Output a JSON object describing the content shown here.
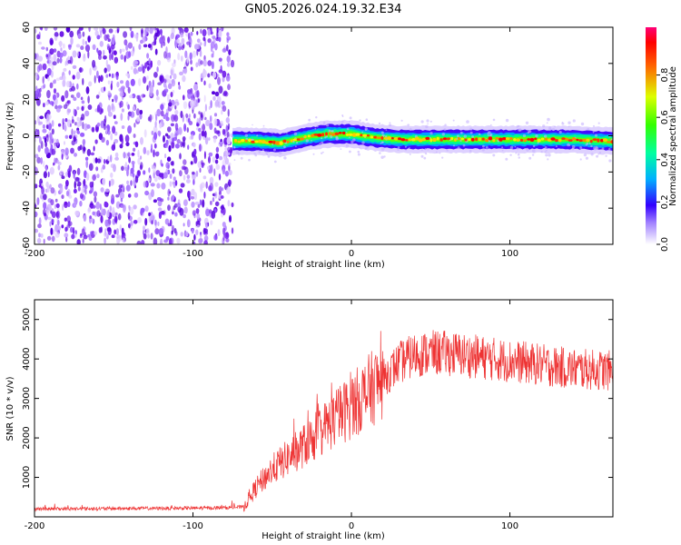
{
  "figure_title": "GN05.2026.024.19.32.E34",
  "chart_data": [
    {
      "type": "heatmap",
      "title": "GN05.2026.024.19.32.E34",
      "xlabel": "Height of straight line (km)",
      "ylabel": "Frequency (Hz)",
      "xlim": [
        -200,
        165
      ],
      "ylim": [
        -60,
        60
      ],
      "xticks": [
        -200,
        -100,
        0,
        100
      ],
      "yticks": [
        -60,
        -40,
        -20,
        0,
        20,
        40,
        60
      ],
      "noise_region_x": [
        -200,
        -75
      ],
      "signal_region_x": [
        -75,
        165
      ],
      "signal_center_freq": [
        {
          "x": -75,
          "y": -3
        },
        {
          "x": -60,
          "y": -3
        },
        {
          "x": -45,
          "y": -4
        },
        {
          "x": -30,
          "y": -1
        },
        {
          "x": -15,
          "y": 1
        },
        {
          "x": 0,
          "y": 1
        },
        {
          "x": 15,
          "y": -1
        },
        {
          "x": 30,
          "y": -2
        },
        {
          "x": 60,
          "y": -2
        },
        {
          "x": 90,
          "y": -2
        },
        {
          "x": 120,
          "y": -2
        },
        {
          "x": 140,
          "y": -2
        },
        {
          "x": 165,
          "y": -3
        }
      ],
      "colorbar": {
        "label": "Normalized spectral amplitude",
        "range": [
          0,
          1
        ],
        "ticks": [
          "0.0",
          "0.2",
          "0.4",
          "0.6",
          "0.8"
        ]
      }
    },
    {
      "type": "line",
      "xlabel": "Height of straight line (km)",
      "ylabel": "SNR (10 * v/v)",
      "xlim": [
        -200,
        165
      ],
      "ylim": [
        0,
        5500
      ],
      "xticks": [
        -200,
        -100,
        0,
        100
      ],
      "yticks": [
        1000,
        2000,
        3000,
        4000,
        5000
      ],
      "color": "#ee3333",
      "series": [
        {
          "name": "SNR",
          "x": [
            -200,
            -150,
            -100,
            -80,
            -68,
            -60,
            -50,
            -40,
            -30,
            -20,
            -10,
            0,
            10,
            20,
            30,
            40,
            50,
            60,
            80,
            100,
            120,
            140,
            165
          ],
          "y": [
            200,
            210,
            220,
            230,
            250,
            750,
            1200,
            1500,
            1800,
            2150,
            2500,
            2800,
            3150,
            3500,
            3900,
            4100,
            4150,
            4150,
            4050,
            3950,
            3850,
            3750,
            3700
          ]
        }
      ]
    }
  ]
}
